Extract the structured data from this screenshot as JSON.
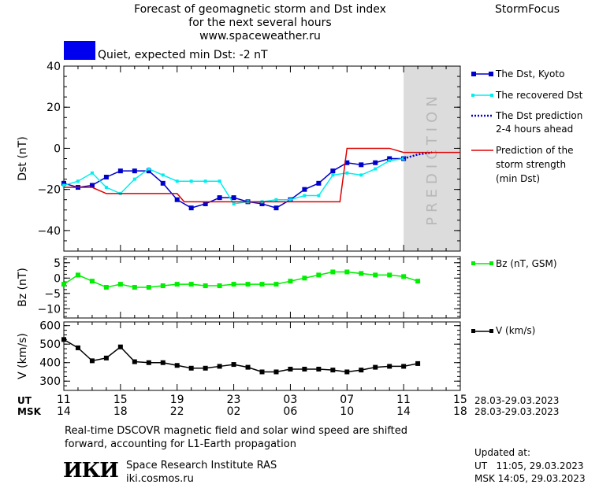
{
  "header": {
    "title_line1": "Forecast of geomagnetic storm and Dst index",
    "title_line2": "for the next several hours",
    "title_line3": "www.spaceweather.ru",
    "brand": "StormFocus"
  },
  "status": {
    "color": "#0000ee",
    "text": "Quiet, expected min Dst: -2 nT"
  },
  "prediction_band_label": "PREDICTION",
  "legend": {
    "dst_kyoto": "The Dst, Kyoto",
    "dst_recovered": "The recovered Dst",
    "dst_prediction_line1": "The Dst prediction",
    "dst_prediction_line2": "2-4 hours ahead",
    "storm_line1": "Prediction of the",
    "storm_line2": "storm strength",
    "storm_line3": "(min Dst)",
    "bz": "Bz (nT, GSM)",
    "v": "V (km/s)"
  },
  "time_axis": {
    "ut_label": "UT",
    "msk_label": "MSK",
    "ut_ticks": [
      "11",
      "15",
      "19",
      "23",
      "03",
      "07",
      "11",
      "15"
    ],
    "msk_ticks": [
      "14",
      "18",
      "22",
      "02",
      "06",
      "10",
      "14",
      "18"
    ],
    "ut_range": "28.03-29.03.2023",
    "msk_range": "28.03-29.03.2023"
  },
  "footer": {
    "note_line1": "Real-time DSCOVR magnetic field and solar wind speed are shifted",
    "note_line2": "forward, accounting for L1-Earth propagation",
    "logo_text": "ИКИ",
    "institute": "Space Research Institute RAS",
    "site": "iki.cosmos.ru",
    "updated_label": "Updated at:",
    "updated_ut": "UT   11:05, 29.03.2023",
    "updated_msk": "MSK 14:05, 29.03.2023"
  },
  "chart_data": [
    {
      "type": "line",
      "x_unit": "hours since 11 UT 28.03.2023",
      "xlim": [
        0,
        28
      ],
      "ylabel": "Dst (nT)",
      "ylim": [
        -50,
        40
      ],
      "yticks": [
        -40,
        -20,
        0,
        20,
        40
      ],
      "prediction_band": [
        24,
        28
      ],
      "series": [
        {
          "name": "The Dst, Kyoto",
          "color": "#0000cc",
          "marker": "square",
          "x": [
            0,
            1,
            2,
            3,
            4,
            5,
            6,
            7,
            8,
            9,
            10,
            11,
            12,
            13,
            14,
            15,
            16,
            17,
            18,
            19,
            20,
            21,
            22,
            23,
            24
          ],
          "y": [
            -17,
            -19,
            -18,
            -14,
            -11,
            -11,
            -11,
            -17,
            -25,
            -29,
            -27,
            -24,
            -24,
            -26,
            -27,
            -29,
            -25,
            -20,
            -17,
            -11,
            -7,
            -8,
            -7,
            -5,
            -5
          ]
        },
        {
          "name": "The recovered Dst",
          "color": "#00eeee",
          "marker": "small-square",
          "x": [
            0,
            1,
            2,
            3,
            4,
            5,
            6,
            7,
            8,
            9,
            10,
            11,
            12,
            13,
            14,
            15,
            16,
            17,
            18,
            19,
            20,
            21,
            22,
            23,
            24
          ],
          "y": [
            -18,
            -16,
            -12,
            -19,
            -22,
            -15,
            -10,
            -13,
            -16,
            -16,
            -16,
            -16,
            -27,
            -26,
            -26,
            -25,
            -25,
            -23,
            -23,
            -13,
            -12,
            -13,
            -10,
            -6,
            -5
          ]
        },
        {
          "name": "The Dst prediction",
          "color": "#0000cc",
          "style": "dotted",
          "x": [
            24,
            25,
            26
          ],
          "y": [
            -5,
            -3,
            -2
          ]
        },
        {
          "name": "Prediction of the storm strength (min Dst)",
          "color": "#dd0000",
          "style": "step",
          "x": [
            0,
            3,
            8.5,
            20,
            24,
            28
          ],
          "y": [
            -19,
            -22,
            -26,
            -26,
            -2,
            -2
          ],
          "points_x": [
            0,
            2,
            3,
            8,
            8.5,
            19.5,
            20,
            21,
            22,
            23,
            24,
            28
          ],
          "points_y": [
            -19,
            -19,
            -22,
            -22,
            -26,
            -26,
            0,
            0,
            0,
            0,
            -2,
            -2
          ]
        }
      ]
    },
    {
      "type": "line",
      "x_unit": "hours since 11 UT 28.03.2023",
      "xlim": [
        0,
        28
      ],
      "ylabel": "Bz (nT)",
      "ylim": [
        -13,
        7
      ],
      "yticks": [
        -10,
        -5,
        0,
        5
      ],
      "series": [
        {
          "name": "Bz (nT, GSM)",
          "color": "#00ee00",
          "marker": "square",
          "x": [
            0,
            1,
            2,
            3,
            4,
            5,
            6,
            7,
            8,
            9,
            10,
            11,
            12,
            13,
            14,
            15,
            16,
            17,
            18,
            19,
            20,
            21,
            22,
            23,
            24,
            25
          ],
          "y": [
            -2,
            1,
            -1,
            -3,
            -2,
            -3,
            -3,
            -2.5,
            -2,
            -2,
            -2.5,
            -2.5,
            -2,
            -2,
            -2,
            -2,
            -1,
            0,
            1,
            2,
            2,
            1.5,
            1,
            1,
            0.5,
            -1
          ]
        }
      ]
    },
    {
      "type": "line",
      "x_unit": "hours since 11 UT 28.03.2023",
      "xlim": [
        0,
        28
      ],
      "ylabel": "V (km/s)",
      "ylim": [
        250,
        620
      ],
      "yticks": [
        300,
        400,
        500,
        600
      ],
      "series": [
        {
          "name": "V (km/s)",
          "color": "#000000",
          "marker": "square",
          "x": [
            0,
            1,
            2,
            3,
            4,
            5,
            6,
            7,
            8,
            9,
            10,
            11,
            12,
            13,
            14,
            15,
            16,
            17,
            18,
            19,
            20,
            21,
            22,
            23,
            24,
            25
          ],
          "y": [
            525,
            480,
            410,
            425,
            485,
            405,
            400,
            400,
            385,
            370,
            370,
            380,
            390,
            375,
            350,
            350,
            365,
            365,
            365,
            360,
            350,
            360,
            375,
            380,
            380,
            395
          ]
        }
      ]
    }
  ]
}
